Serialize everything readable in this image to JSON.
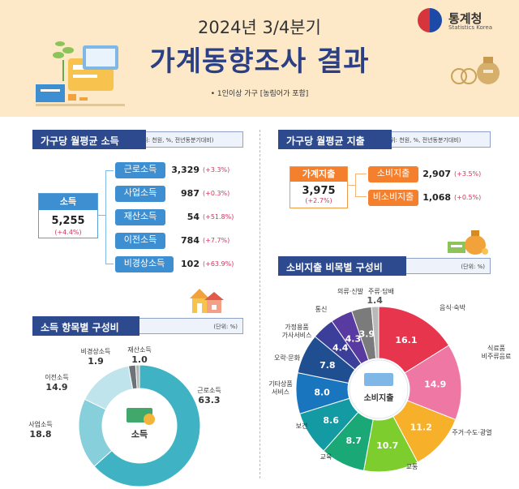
{
  "header": {
    "subtitle": "2024년 3/4분기",
    "title": "가계동향조사 결과",
    "note": "• 1인이상 가구 [농림어가 포함]",
    "logo_name": "통계청",
    "logo_en": "Statistics Korea"
  },
  "income": {
    "section_title": "가구당 월평균 소득",
    "unit": "(단위: 천원, %, 전년동분기대비)",
    "total": {
      "label": "소득",
      "value": "5,255",
      "change": "(+4.4%)"
    },
    "items": [
      {
        "label": "근로소득",
        "value": "3,329",
        "change": "(+3.3%)"
      },
      {
        "label": "사업소득",
        "value": "987",
        "change": "(+0.3%)"
      },
      {
        "label": "재산소득",
        "value": "54",
        "change": "(+51.8%)"
      },
      {
        "label": "이전소득",
        "value": "784",
        "change": "(+7.7%)"
      },
      {
        "label": "비경상소득",
        "value": "102",
        "change": "(+63.9%)"
      }
    ]
  },
  "spending": {
    "section_title": "가구당 월평균 지출",
    "unit": "(단위: 천원, %, 전년동분기대비)",
    "total": {
      "label": "가계지출",
      "value": "3,975",
      "change": "(+2.7%)"
    },
    "items": [
      {
        "label": "소비지출",
        "value": "2,907",
        "change": "(+3.5%)"
      },
      {
        "label": "비소비지출",
        "value": "1,068",
        "change": "(+0.5%)"
      }
    ]
  },
  "income_composition": {
    "section_title": "소득 항목별 구성비",
    "unit": "(단위: %)",
    "center_label": "소득"
  },
  "consumption_composition": {
    "section_title": "소비지출 비목별 구성비",
    "unit": "(단위: %)",
    "center_label": "소비지출"
  },
  "colors": {
    "navy": "#2d4a8f",
    "income_accent": "#3d8fd1",
    "spending_accent": "#f47f2c",
    "change_red": "#d6355c"
  },
  "chart_data": [
    {
      "type": "pie",
      "title": "소득 항목별 구성비",
      "categories": [
        "근로소득",
        "사업소득",
        "이전소득",
        "비경상소득",
        "재산소득"
      ],
      "values": [
        63.3,
        18.8,
        14.9,
        1.9,
        1.0
      ],
      "colors": [
        "#3fb3c4",
        "#86cfdb",
        "#bfe4ec",
        "#6d7378",
        "#b5b5b5"
      ]
    },
    {
      "type": "pie",
      "title": "소비지출 비목별 구성비",
      "categories": [
        "음식·숙박",
        "식료품 비주류음료",
        "주거·수도·광열",
        "교통",
        "교육",
        "보건",
        "기타상품 서비스",
        "오락·문화",
        "가정용품 가사서비스",
        "통신",
        "의류·신발",
        "주류·담배"
      ],
      "values": [
        16.1,
        14.9,
        11.2,
        10.7,
        8.7,
        8.6,
        8.0,
        7.8,
        4.4,
        4.3,
        3.9,
        1.4
      ],
      "colors": [
        "#e8354e",
        "#ee77a4",
        "#f6b02a",
        "#7dcd2f",
        "#1aa876",
        "#139aa3",
        "#1976be",
        "#1f4f90",
        "#3b3f9a",
        "#593aa0",
        "#7b7b7b",
        "#b9b9b9"
      ]
    }
  ]
}
